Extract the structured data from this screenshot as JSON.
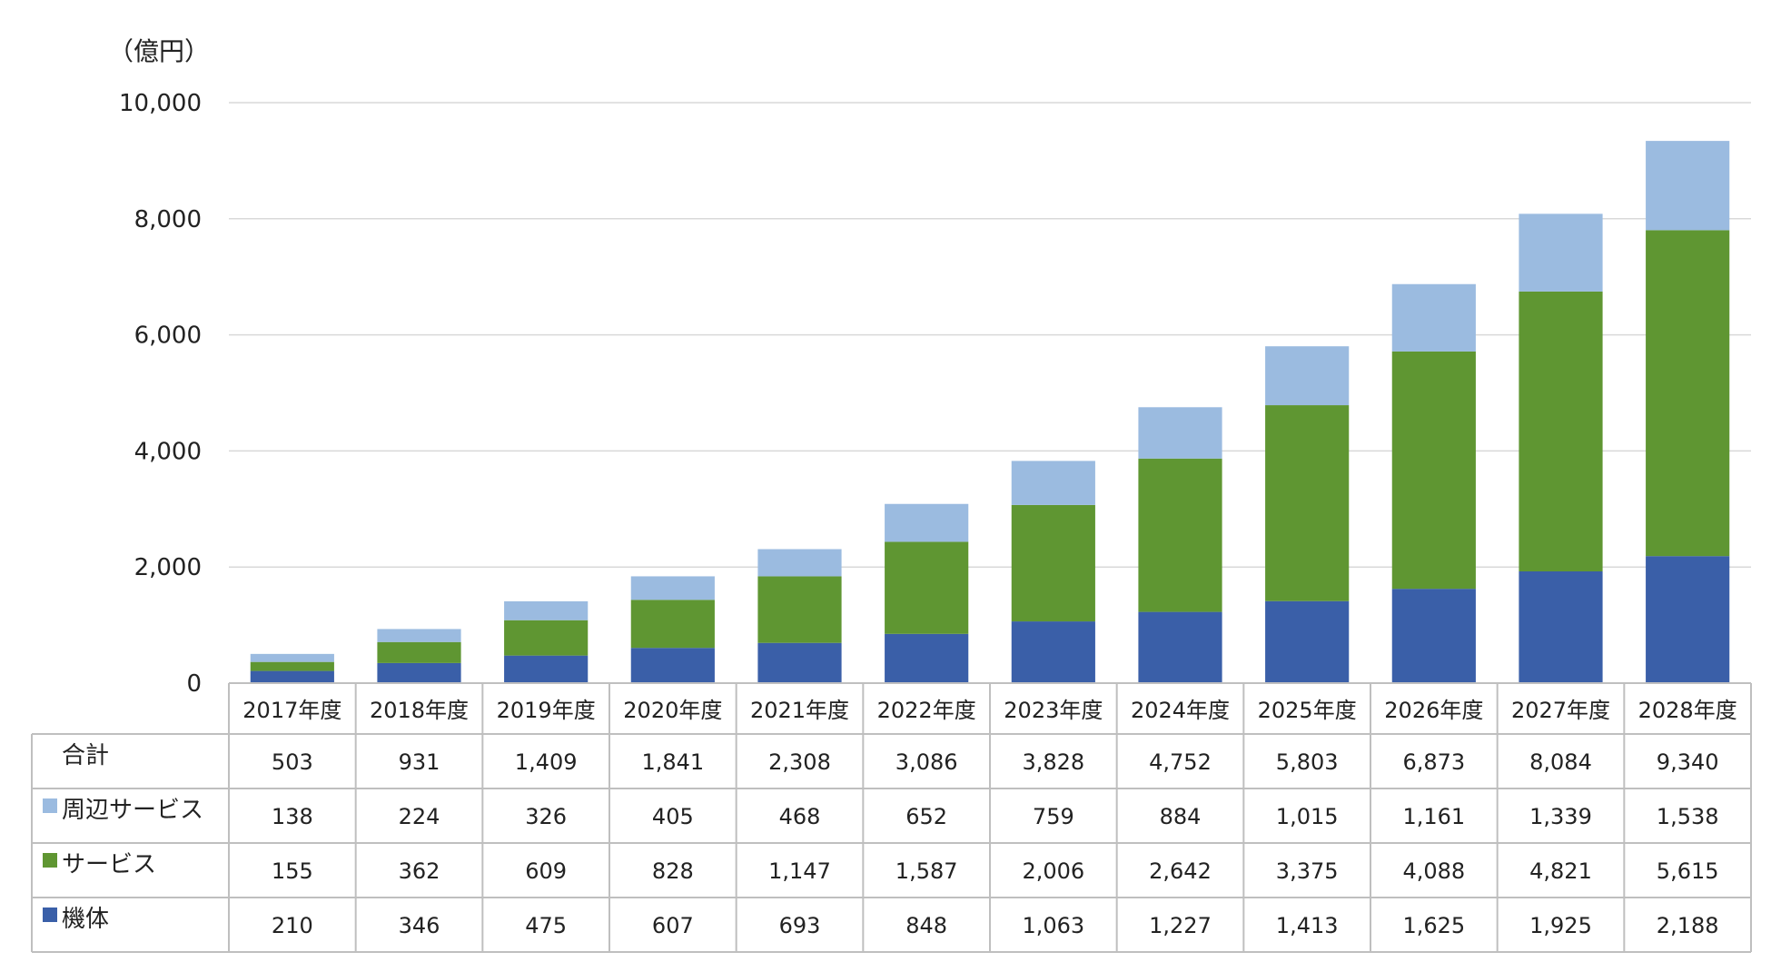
{
  "chart_data": {
    "type": "bar",
    "stacked": true,
    "unit_label": "（億円）",
    "categories": [
      "2017年度",
      "2018年度",
      "2019年度",
      "2020年度",
      "2021年度",
      "2022年度",
      "2023年度",
      "2024年度",
      "2025年度",
      "2026年度",
      "2027年度",
      "2028年度"
    ],
    "series": [
      {
        "name": "機体",
        "color": "#3a5fa8",
        "values": [
          210,
          346,
          475,
          607,
          693,
          848,
          1063,
          1227,
          1413,
          1625,
          1925,
          2188
        ],
        "labels": [
          "210",
          "346",
          "475",
          "607",
          "693",
          "848",
          "1,063",
          "1,227",
          "1,413",
          "1,625",
          "1,925",
          "2,188"
        ]
      },
      {
        "name": "サービス",
        "color": "#5f9632",
        "values": [
          155,
          362,
          609,
          828,
          1147,
          1587,
          2006,
          2642,
          3375,
          4088,
          4821,
          5615
        ],
        "labels": [
          "155",
          "362",
          "609",
          "828",
          "1,147",
          "1,587",
          "2,006",
          "2,642",
          "3,375",
          "4,088",
          "4,821",
          "5,615"
        ]
      },
      {
        "name": "周辺サービス",
        "color": "#9bbbe0",
        "values": [
          138,
          224,
          326,
          405,
          468,
          652,
          759,
          884,
          1015,
          1161,
          1339,
          1538
        ],
        "labels": [
          "138",
          "224",
          "326",
          "405",
          "468",
          "652",
          "759",
          "884",
          "1,015",
          "1,161",
          "1,339",
          "1,538"
        ]
      }
    ],
    "total": {
      "name": "合計",
      "values": [
        503,
        931,
        1409,
        1841,
        2308,
        3086,
        3828,
        4752,
        5803,
        6873,
        8084,
        9340
      ],
      "labels": [
        "503",
        "931",
        "1,409",
        "1,841",
        "2,308",
        "3,086",
        "3,828",
        "4,752",
        "5,803",
        "6,873",
        "8,084",
        "9,340"
      ]
    },
    "table_row_order": [
      "total",
      "周辺サービス",
      "サービス",
      "機体"
    ],
    "ylim": [
      0,
      10000
    ],
    "yticks": [
      0,
      2000,
      4000,
      6000,
      8000,
      10000
    ],
    "ytick_labels": [
      "0",
      "2,000",
      "4,000",
      "6,000",
      "8,000",
      "10,000"
    ],
    "grid": true,
    "legend": "in data table"
  }
}
